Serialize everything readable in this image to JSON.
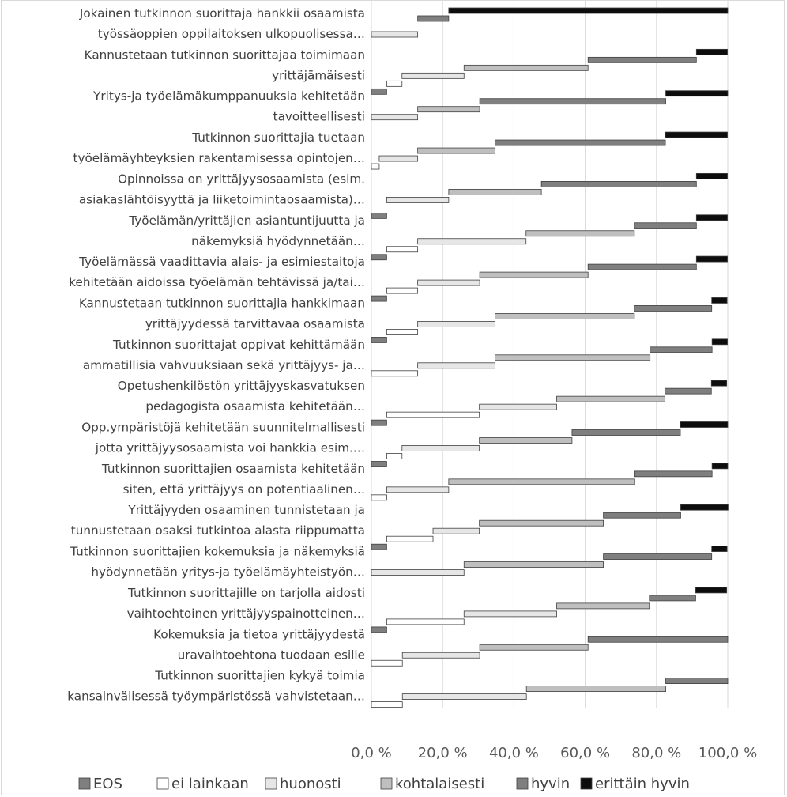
{
  "chart_data": {
    "type": "bar",
    "stacked": true,
    "orientation": "horizontal",
    "categories": [
      [
        "Jokainen tutkinnon suorittaja hankkii osaamista",
        "työssäoppien oppilaitoksen ulkopuolisessa…"
      ],
      [
        "Kannustetaan tutkinnon suorittajaa toimimaan",
        "yrittäjämäisesti"
      ],
      [
        "Yritys-ja työelämäkumppanuuksia kehitetään",
        "tavoitteellisesti"
      ],
      [
        "Tutkinnon suorittajia tuetaan",
        "työelämäyhteyksien rakentamisessa opintojen…"
      ],
      [
        "Opinnoissa on yrittäjyysosaamista (esim.",
        "asiakaslähtöisyyttä ja liiketoimintaosaamista)…"
      ],
      [
        "Työelämän/yrittäjien asiantuntijuutta ja",
        "näkemyksiä hyödynnetään…"
      ],
      [
        "Työelämässä vaadittavia alais- ja esimiestaitoja",
        "kehitetään aidoissa työelämän tehtävissä ja/tai…"
      ],
      [
        "Kannustetaan tutkinnon suorittajia hankkimaan",
        "yrittäjyydessä tarvittavaa osaamista"
      ],
      [
        "Tutkinnon suorittajat oppivat kehittämään",
        "ammatillisia vahvuuksiaan sekä yrittäjyys- ja…"
      ],
      [
        "Opetushenkilöstön yrittäjyyskasvatuksen",
        "pedagogista osaamista kehitetään…"
      ],
      [
        "Opp.ympäristöjä kehitetään suunnitelmallisesti",
        "jotta yrittäjyysosaamista voi hankkia esim.…"
      ],
      [
        "Tutkinnon suorittajien osaamista kehitetään",
        "siten, että yrittäjyys on potentiaalinen…"
      ],
      [
        "Yrittäjyyden osaaminen tunnistetaan ja",
        "tunnustetaan osaksi tutkintoa alasta riippumatta"
      ],
      [
        "Tutkinnon suorittajien kokemuksia ja näkemyksiä",
        "hyödynnetään yritys-ja työelämäyhteistyön…"
      ],
      [
        "Tutkinnon suorittajille on tarjolla aidosti",
        "vaihtoehtoinen yrittäjyyspainotteinen…"
      ],
      [
        "Kokemuksia ja tietoa yrittäjyydestä",
        "uravaihtoehtona tuodaan esille"
      ],
      [
        "Tutkinnon suorittajien kykyä toimia",
        "kansainvälisessä työympäristössä vahvistetaan…"
      ]
    ],
    "series": [
      {
        "name": "EOS",
        "color": "#7f7f7f",
        "values": [
          0,
          4.3,
          0,
          0,
          4.3,
          4.3,
          4.3,
          4.3,
          0,
          4.3,
          4.3,
          0,
          4.3,
          0,
          4.3,
          0,
          0
        ]
      },
      {
        "name": "ei lainkaan",
        "color": "#ffffff",
        "values": [
          0,
          4.3,
          0,
          2.2,
          0,
          8.7,
          8.7,
          8.7,
          13,
          26,
          4.3,
          4.3,
          13,
          0,
          21.7,
          8.7,
          8.7
        ]
      },
      {
        "name": "huonosti",
        "color": "#e6e6e6",
        "values": [
          13,
          17.4,
          13,
          10.8,
          17.4,
          30.4,
          17.4,
          21.7,
          21.7,
          21.7,
          21.7,
          17.4,
          13,
          26,
          26,
          21.7,
          34.8
        ]
      },
      {
        "name": "kohtalaisesti",
        "color": "#bfbfbf",
        "values": [
          0,
          34.8,
          17.4,
          21.7,
          26,
          30.4,
          30.4,
          39.1,
          43.5,
          30.4,
          26,
          52.2,
          34.8,
          39.1,
          26,
          30.4,
          39.1
        ]
      },
      {
        "name": "hyvin",
        "color": "#7f7f7f",
        "values": [
          8.7,
          30.4,
          52.2,
          47.8,
          43.5,
          17.4,
          30.4,
          21.7,
          17.4,
          13,
          30.4,
          21.7,
          21.7,
          30.4,
          13,
          39.2,
          17.4
        ]
      },
      {
        "name": "erittäin hyvin",
        "color": "#0d0d0d",
        "values": [
          78.3,
          8.7,
          17.4,
          17.4,
          8.7,
          8.7,
          8.7,
          4.3,
          4.3,
          4.3,
          13.3,
          4.4,
          13.3,
          4.3,
          8.7,
          0,
          0
        ]
      }
    ],
    "xlim": [
      0,
      100
    ],
    "xticks": [
      "0,0 %",
      "20,0 %",
      "40,0 %",
      "60,0 %",
      "80,0 %",
      "100,0 %"
    ],
    "grid": true,
    "legend_position": "bottom"
  }
}
